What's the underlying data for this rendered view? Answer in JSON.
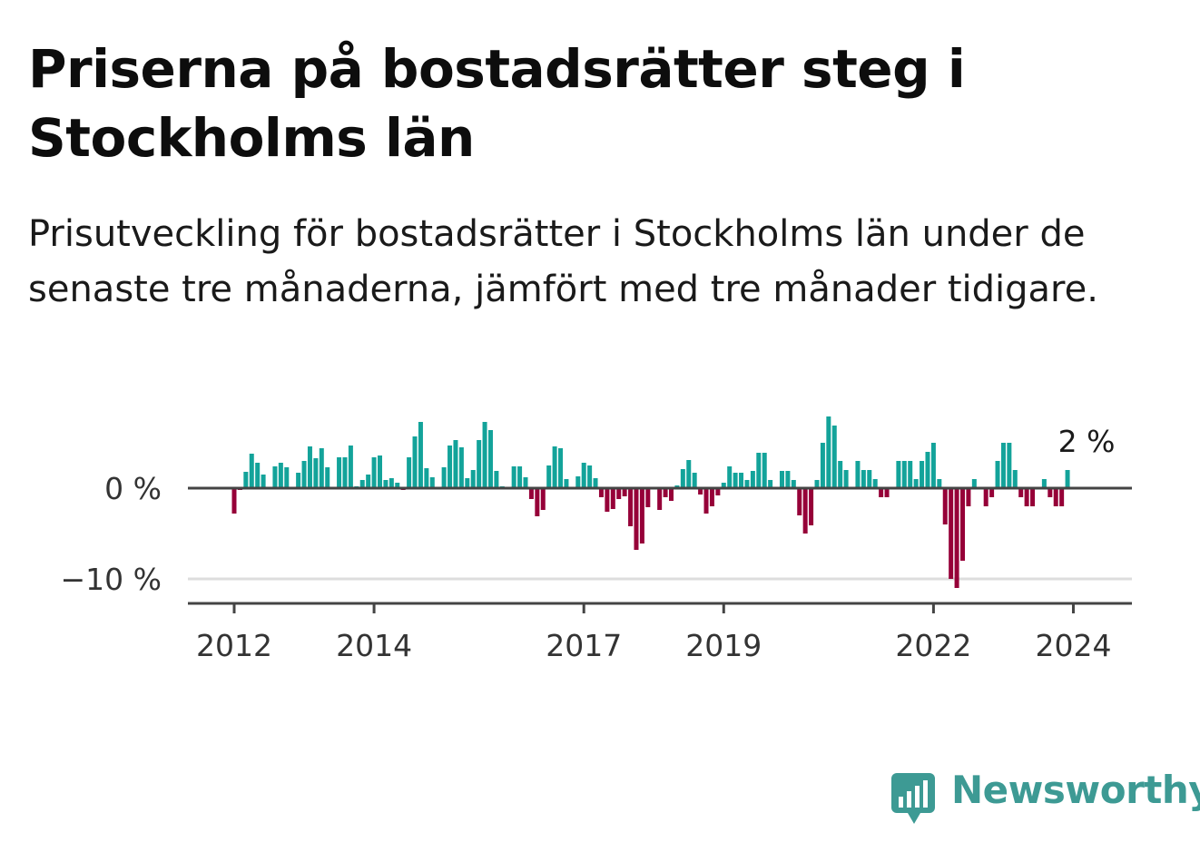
{
  "title": "Priserna på bostadsrätter steg i Stockholms län",
  "subtitle": "Prisutveckling för bostadsrätter i Stockholms län under de senaste tre månaderna, jämfört med tre månader tidigare.",
  "brand": "Newsworthy",
  "colors": {
    "positive": "#13a39a",
    "negative": "#960038",
    "axis": "#444444",
    "grid": "#dddddd",
    "brand": "#3d9a94"
  },
  "chart_data": {
    "type": "bar",
    "x_start": "2012-01",
    "x_interval": "month",
    "ylim": [
      -12,
      9
    ],
    "grid": true,
    "y_ticks": [
      0,
      -10
    ],
    "y_tick_labels": [
      "0 %",
      "−10 %"
    ],
    "x_ticks": [
      "2012",
      "2014",
      "2017",
      "2019",
      "2022",
      "2024"
    ],
    "last_value_label": "2 %",
    "values": [
      -2.8,
      -0.2,
      1.8,
      3.8,
      2.8,
      1.5,
      0.0,
      2.4,
      2.8,
      2.3,
      0.0,
      1.7,
      3.0,
      4.6,
      3.3,
      4.4,
      2.3,
      0.0,
      3.4,
      3.4,
      4.7,
      0.2,
      0.9,
      1.5,
      3.4,
      3.6,
      0.9,
      1.1,
      0.6,
      -0.2,
      3.4,
      5.7,
      7.3,
      2.2,
      1.2,
      0.0,
      2.3,
      4.7,
      5.3,
      4.5,
      1.1,
      2.0,
      5.3,
      7.3,
      6.4,
      1.9,
      0.2,
      0.0,
      2.4,
      2.4,
      1.2,
      -1.2,
      -3.1,
      -2.4,
      2.5,
      4.6,
      4.4,
      1.0,
      0.0,
      1.3,
      2.8,
      2.5,
      1.1,
      -1.0,
      -2.6,
      -2.3,
      -1.2,
      -0.9,
      -4.2,
      -6.8,
      -6.1,
      -2.1,
      0.0,
      -2.4,
      -1.0,
      -1.4,
      0.3,
      2.1,
      3.1,
      1.7,
      -0.7,
      -2.8,
      -2.0,
      -0.8,
      0.6,
      2.4,
      1.7,
      1.7,
      0.9,
      1.9,
      3.9,
      3.9,
      0.9,
      0.0,
      1.9,
      1.9,
      0.9,
      -3.0,
      -5.0,
      -4.1,
      0.9,
      5.0,
      7.9,
      6.9,
      3.0,
      2.0,
      0.0,
      3.0,
      2.0,
      2.0,
      1.0,
      -1.0,
      -1.0,
      0.0,
      3.0,
      3.0,
      3.0,
      1.0,
      3.0,
      4.0,
      5.0,
      1.0,
      -4.0,
      -10.0,
      -11.0,
      -8.0,
      -2.0,
      1.0,
      0.0,
      -2.0,
      -1.0,
      3.0,
      5.0,
      5.0,
      2.0,
      -1.0,
      -2.0,
      -2.0,
      0.0,
      1.0,
      -1.0,
      -2.0,
      -2.0,
      2.0
    ]
  }
}
